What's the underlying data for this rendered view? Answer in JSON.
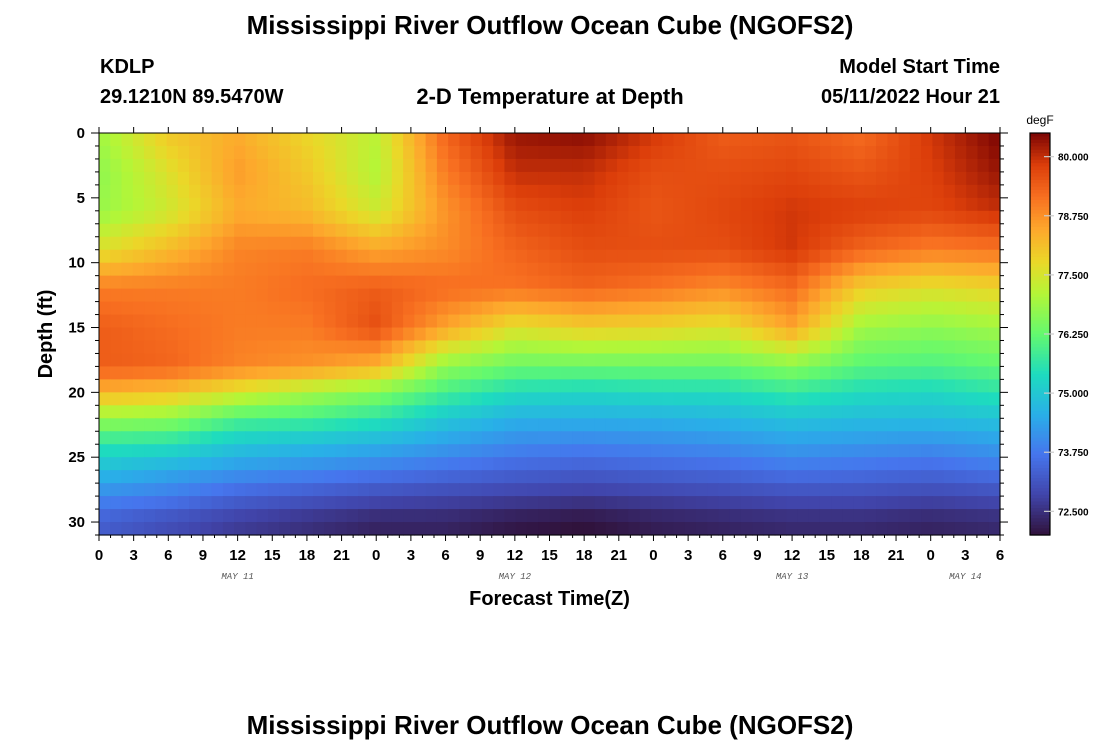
{
  "header": {
    "title": "Mississippi River Outflow Ocean Cube (NGOFS2)",
    "station": "KDLP",
    "location": "29.1210N  89.5470W",
    "subtitle": "2-D Temperature at Depth",
    "model_start_label": "Model Start Time",
    "model_start_value": "05/11/2022 Hour 21"
  },
  "footer": {
    "title": "Mississippi River Outflow Ocean Cube (NGOFS2)"
  },
  "chart_data": {
    "type": "heatmap",
    "title": "2-D Temperature at Depth",
    "xlabel": "Forecast Time(Z)",
    "ylabel": "Depth (ft)",
    "x_tick_labels": [
      "0",
      "3",
      "6",
      "9",
      "12",
      "15",
      "18",
      "21",
      "0",
      "3",
      "6",
      "9",
      "12",
      "15",
      "18",
      "21",
      "0",
      "3",
      "6",
      "9",
      "12",
      "15",
      "18",
      "21",
      "0",
      "3",
      "6"
    ],
    "date_labels": [
      {
        "text": "MAY 11",
        "tick_index": 4
      },
      {
        "text": "MAY 12",
        "tick_index": 12
      },
      {
        "text": "MAY 13",
        "tick_index": 20
      },
      {
        "text": "MAY 14",
        "tick_index": 25
      }
    ],
    "y_ticks": [
      0,
      5,
      10,
      15,
      20,
      25,
      30
    ],
    "ylim": [
      0,
      31
    ],
    "y_inverted": true,
    "colorbar": {
      "unit": "degF",
      "ticks": [
        "72.500",
        "73.750",
        "75.000",
        "76.250",
        "77.500",
        "78.750",
        "80.000"
      ],
      "range": [
        72.0,
        80.5
      ]
    },
    "hours": [
      0,
      6,
      12,
      18,
      24,
      30,
      36,
      42,
      48,
      54,
      60,
      66,
      72,
      78
    ],
    "depths": [
      0,
      3,
      6,
      9,
      12,
      15,
      18,
      20,
      22,
      24,
      26,
      28,
      30
    ],
    "temperature_degF": [
      [
        76.9,
        78.0,
        78.4,
        77.8,
        77.2,
        79.3,
        80.3,
        80.4,
        79.9,
        79.4,
        79.5,
        79.2,
        79.9,
        80.5
      ],
      [
        76.7,
        77.6,
        78.6,
        78.0,
        77.1,
        79.0,
        80.0,
        80.0,
        79.6,
        79.6,
        79.7,
        79.5,
        79.8,
        80.3
      ],
      [
        76.8,
        77.4,
        78.4,
        78.2,
        77.4,
        78.7,
        79.6,
        79.8,
        79.5,
        79.7,
        79.9,
        79.8,
        79.7,
        80.0
      ],
      [
        77.6,
        78.2,
        78.9,
        79.0,
        78.5,
        78.8,
        79.3,
        79.6,
        79.6,
        79.6,
        79.9,
        79.3,
        79.0,
        79.1
      ],
      [
        79.0,
        79.0,
        79.0,
        79.2,
        79.4,
        79.2,
        79.1,
        79.3,
        79.1,
        78.8,
        79.2,
        77.9,
        77.6,
        77.8
      ],
      [
        79.4,
        79.2,
        79.0,
        79.0,
        79.6,
        78.5,
        77.6,
        77.9,
        77.8,
        77.6,
        78.5,
        76.9,
        76.7,
        76.9
      ],
      [
        79.4,
        79.3,
        78.9,
        78.7,
        78.3,
        76.7,
        76.3,
        76.3,
        76.3,
        76.3,
        76.6,
        76.1,
        76.0,
        76.2
      ],
      [
        78.3,
        78.1,
        77.5,
        77.0,
        76.6,
        75.9,
        75.4,
        75.3,
        75.4,
        75.4,
        75.7,
        75.4,
        75.3,
        75.6
      ],
      [
        76.8,
        76.7,
        76.0,
        75.9,
        75.6,
        75.0,
        74.6,
        74.6,
        74.6,
        74.7,
        74.9,
        74.8,
        74.8,
        74.9
      ],
      [
        75.6,
        75.5,
        75.0,
        74.8,
        74.6,
        74.3,
        74.0,
        73.9,
        74.0,
        74.1,
        74.3,
        74.2,
        74.1,
        74.3
      ],
      [
        74.8,
        74.5,
        74.2,
        74.0,
        73.8,
        73.6,
        73.4,
        73.3,
        73.4,
        73.5,
        73.7,
        73.6,
        73.5,
        73.7
      ],
      [
        74.0,
        73.8,
        73.4,
        73.2,
        73.0,
        72.9,
        72.8,
        72.7,
        72.8,
        72.9,
        73.0,
        73.0,
        72.9,
        73.0
      ],
      [
        73.3,
        73.0,
        72.7,
        72.5,
        72.3,
        72.3,
        72.1,
        72.0,
        72.2,
        72.3,
        72.4,
        72.4,
        72.3,
        72.4
      ]
    ]
  }
}
